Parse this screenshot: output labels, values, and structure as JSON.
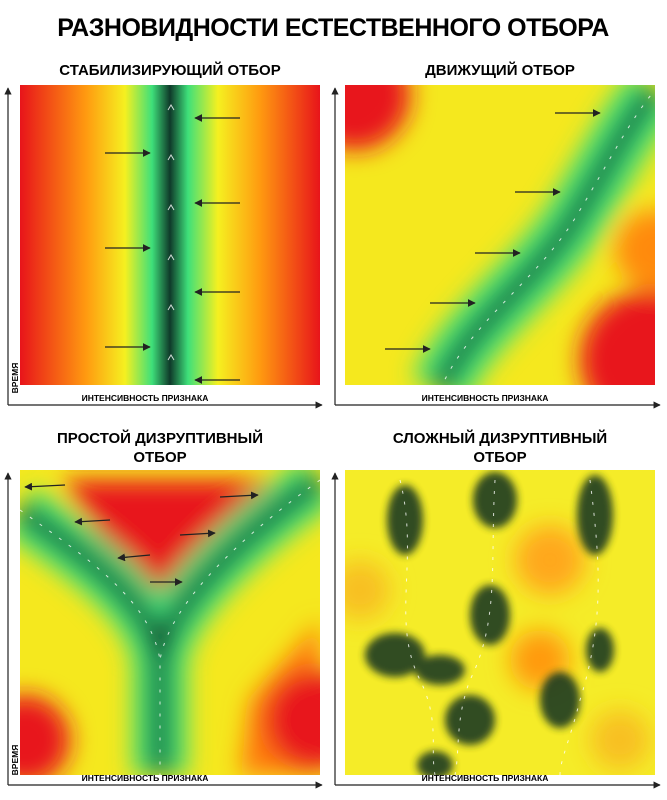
{
  "title": "РАЗНОВИДНОСТИ ЕСТЕСТВЕННОГО ОТБОРА",
  "panels": [
    {
      "title": [
        "СТАБИЛИЗИРУЮЩИЙ ОТБОР"
      ],
      "y_axis_label": "ВРЕМЯ",
      "x_axis_label": "ИНТЕНСИВНОСТЬ ПРИЗНАКА"
    },
    {
      "title": [
        "ДВИЖУЩИЙ ОТБОР"
      ],
      "x_axis_label": "ИНТЕНСИВНОСТЬ ПРИЗНАКА"
    },
    {
      "title": [
        "ПРОСТОЙ ДИЗРУПТИВНЫЙ",
        "ОТБОР"
      ],
      "y_axis_label": "ВРЕМЯ",
      "x_axis_label": "ИНТЕНСИВНОСТЬ ПРИЗНАКА"
    },
    {
      "title": [
        "СЛОЖНЫЙ ДИЗРУПТИВНЫЙ",
        "ОТБОР"
      ],
      "x_axis_label": "ИНТЕНСИВНОСТЬ ПРИЗНАКА"
    }
  ]
}
